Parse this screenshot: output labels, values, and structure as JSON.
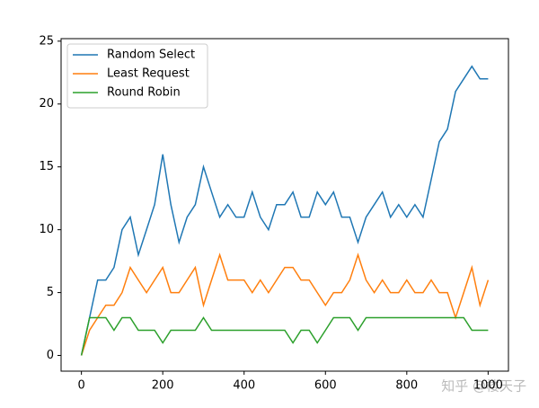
{
  "chart_data": {
    "type": "line",
    "x": [
      0,
      20,
      40,
      60,
      80,
      100,
      120,
      140,
      160,
      180,
      200,
      220,
      240,
      260,
      280,
      300,
      320,
      340,
      360,
      380,
      400,
      420,
      440,
      460,
      480,
      500,
      520,
      540,
      560,
      580,
      600,
      620,
      640,
      660,
      680,
      700,
      720,
      740,
      760,
      780,
      800,
      820,
      840,
      860,
      880,
      900,
      920,
      940,
      960,
      980,
      1000
    ],
    "series": [
      {
        "name": "Random Select",
        "color": "#1f77b4",
        "values": [
          0,
          3,
          6,
          6,
          7,
          10,
          11,
          8,
          10,
          12,
          16,
          12,
          9,
          11,
          12,
          15,
          13,
          11,
          12,
          11,
          11,
          13,
          11,
          10,
          12,
          12,
          13,
          11,
          11,
          13,
          12,
          13,
          11,
          11,
          9,
          11,
          12,
          13,
          11,
          12,
          11,
          12,
          11,
          14,
          17,
          18,
          21,
          22,
          23,
          22,
          22
        ]
      },
      {
        "name": "Least Request",
        "color": "#ff7f0e",
        "values": [
          0,
          2,
          3,
          4,
          4,
          5,
          7,
          6,
          5,
          6,
          7,
          5,
          5,
          6,
          7,
          4,
          6,
          8,
          6,
          6,
          6,
          5,
          6,
          5,
          6,
          7,
          7,
          6,
          6,
          5,
          4,
          5,
          5,
          6,
          8,
          6,
          5,
          6,
          5,
          5,
          6,
          5,
          5,
          6,
          5,
          5,
          3,
          5,
          7,
          4,
          6
        ]
      },
      {
        "name": "Round Robin",
        "color": "#2ca02c",
        "values": [
          0,
          3,
          3,
          3,
          2,
          3,
          3,
          2,
          2,
          2,
          1,
          2,
          2,
          2,
          2,
          3,
          2,
          2,
          2,
          2,
          2,
          2,
          2,
          2,
          2,
          2,
          1,
          2,
          2,
          1,
          2,
          3,
          3,
          3,
          2,
          3,
          3,
          3,
          3,
          3,
          3,
          3,
          3,
          3,
          3,
          3,
          3,
          3,
          2,
          2,
          2
        ]
      }
    ],
    "xlim": [
      -50,
      1050
    ],
    "xticks": [
      0,
      200,
      400,
      600,
      800,
      1000
    ],
    "ylim": [
      -1.25,
      25.2
    ],
    "yticks": [
      0,
      5,
      10,
      15,
      20,
      25
    ],
    "legend": "upper left",
    "watermark": "知乎 @楼天子"
  }
}
